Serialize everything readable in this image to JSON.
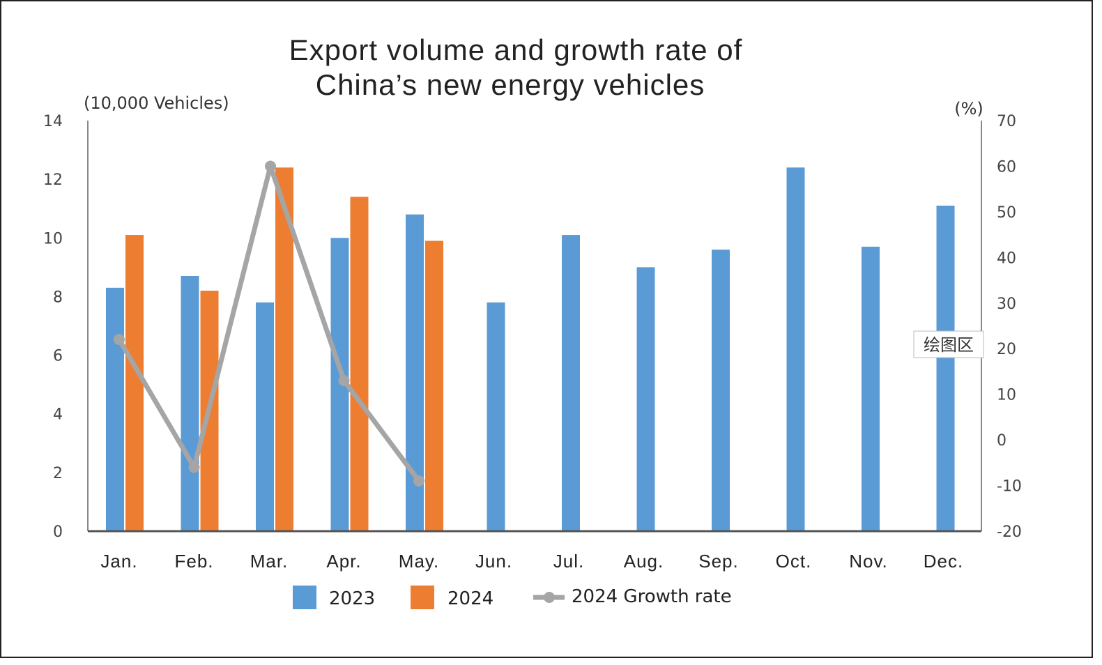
{
  "chart_data": {
    "type": "bar",
    "title_lines": [
      "Export volume and growth rate of",
      "China’s new energy vehicles"
    ],
    "ylabel_left": "(10,000 Vehicles)",
    "ylabel_right": "(%)",
    "categories": [
      "Jan.",
      "Feb.",
      "Mar.",
      "Apr.",
      "May.",
      "Jun.",
      "Jul.",
      "Aug.",
      "Sep.",
      "Oct.",
      "Nov.",
      "Dec."
    ],
    "ylim_left": [
      0,
      14
    ],
    "yticks_left": [
      0,
      2,
      4,
      6,
      8,
      10,
      12,
      14
    ],
    "ylim_right": [
      -20,
      70
    ],
    "yticks_right": [
      -20,
      -10,
      0,
      10,
      20,
      30,
      40,
      50,
      60,
      70
    ],
    "series": [
      {
        "name": "2023",
        "type": "bar",
        "axis": "left",
        "color": "#5b9bd5",
        "values": [
          8.3,
          8.7,
          7.8,
          10.0,
          10.8,
          7.8,
          10.1,
          9.0,
          9.6,
          12.4,
          9.7,
          11.1
        ]
      },
      {
        "name": "2024",
        "type": "bar",
        "axis": "left",
        "color": "#ed7d31",
        "values": [
          10.1,
          8.2,
          12.4,
          11.4,
          9.9,
          null,
          null,
          null,
          null,
          null,
          null,
          null
        ]
      },
      {
        "name": "2024 Growth rate",
        "type": "line",
        "axis": "right",
        "color": "#a5a5a5",
        "values": [
          22,
          -6,
          60,
          13,
          -9,
          null,
          null,
          null,
          null,
          null,
          null,
          null
        ]
      }
    ],
    "legend": {
      "position": "bottom",
      "items": [
        "2023",
        "2024",
        "2024 Growth rate"
      ]
    },
    "negative_tick_color": "#e03030",
    "tooltip_text": "绘图区",
    "grid": false
  }
}
